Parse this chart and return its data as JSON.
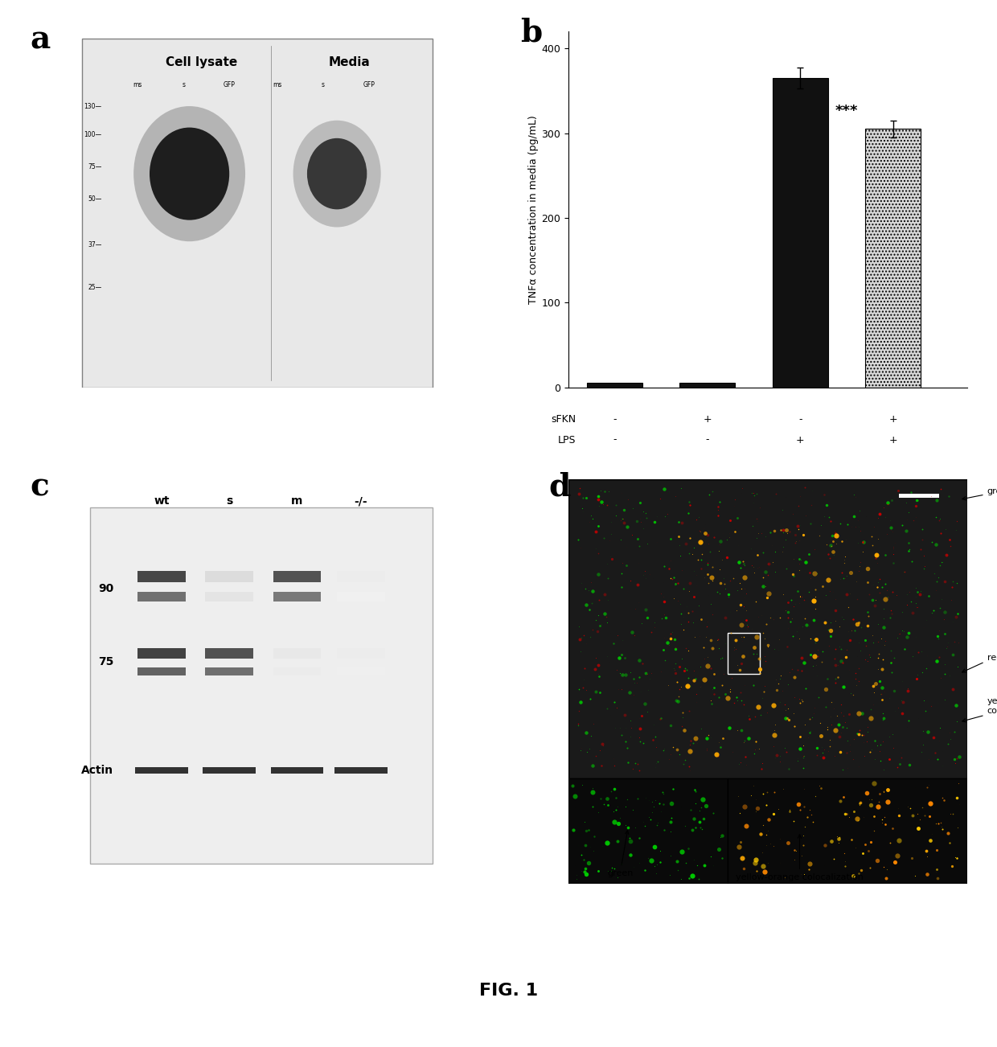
{
  "panel_a_label": "a",
  "panel_b_label": "b",
  "panel_c_label": "c",
  "panel_d_label": "d",
  "fig_title": "FIG. 1",
  "panel_b": {
    "values": [
      5,
      5,
      365,
      305
    ],
    "errors": [
      2,
      2,
      12,
      10
    ],
    "bar_colors": [
      "#111111",
      "#111111",
      "#111111",
      "#cccccc"
    ],
    "ylabel": "TNFα concentration in media (pg/mL)",
    "ylim": [
      0,
      420
    ],
    "yticks": [
      0,
      100,
      200,
      300,
      400
    ],
    "sfkn_row": [
      "sFKN",
      "-",
      "+",
      "-",
      "+"
    ],
    "lps_row": [
      "LPS",
      "-",
      "-",
      "+",
      "+"
    ],
    "significance": "***"
  },
  "panel_c": {
    "col_labels": [
      "wt",
      "s",
      "m",
      "-/-"
    ],
    "row_labels": [
      "90",
      "75",
      "Actin"
    ]
  },
  "panel_a": {
    "col_labels_top": [
      "Cell lysate",
      "Media"
    ],
    "marker_labels": [
      "130",
      "100",
      "75",
      "50",
      "37",
      "25"
    ]
  }
}
